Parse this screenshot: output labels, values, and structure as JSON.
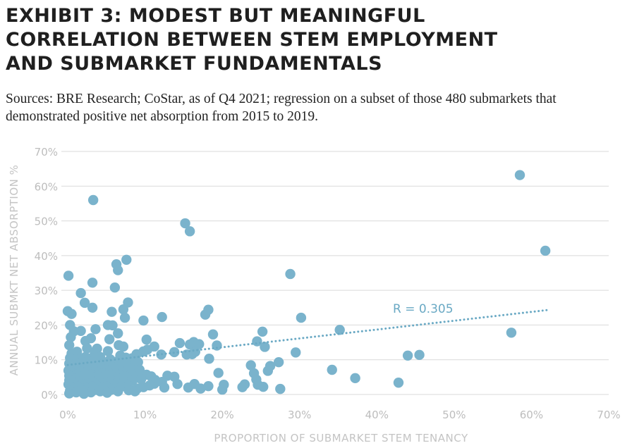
{
  "title_lines": [
    "EXHIBIT 3: MODEST BUT MEANINGFUL",
    "CORRELATION BETWEEN STEM EMPLOYMENT",
    "AND SUBMARKET FUNDAMENTALS"
  ],
  "subtitle": "Sources: BRE Research; CoStar, as of Q4 2021; regression on a subset of those 480 submarkets that demonstrated positive net absorption from 2015 to 2019.",
  "colors": {
    "point": "#7ab3cc",
    "trend": "#6aa9c4",
    "grid": "#d9d9d9",
    "tick": "#bdbdbd"
  },
  "chart_data": {
    "type": "scatter",
    "xlabel": "PROPORTION OF SUBMARKET STEM TENANCY",
    "ylabel": "ANNUAL SUBMKT NET ABSORPTION %",
    "xlim": [
      0,
      70
    ],
    "ylim": [
      0,
      70
    ],
    "x_ticks": [
      "0%",
      "10%",
      "20%",
      "30%",
      "40%",
      "50%",
      "60%",
      "70%"
    ],
    "y_ticks": [
      "0%",
      "10%",
      "20%",
      "30%",
      "40%",
      "50%",
      "60%",
      "70%"
    ],
    "grid": "horizontal",
    "annotation": "R = 0.305",
    "trendline": {
      "x": [
        0,
        62
      ],
      "y": [
        8.5,
        24.3
      ],
      "style": "dotted"
    },
    "points": [
      [
        3.3,
        56
      ],
      [
        15.2,
        49.3
      ],
      [
        15.8,
        47
      ],
      [
        58.5,
        63.2
      ],
      [
        61.8,
        41.4
      ],
      [
        7.6,
        38.8
      ],
      [
        6.3,
        37.5
      ],
      [
        6.5,
        35.8
      ],
      [
        0.1,
        34.2
      ],
      [
        28.8,
        34.7
      ],
      [
        3.2,
        32.2
      ],
      [
        6.1,
        30.8
      ],
      [
        1.7,
        29.2
      ],
      [
        7.8,
        26.5
      ],
      [
        2.2,
        26.4
      ],
      [
        3.2,
        25
      ],
      [
        5.7,
        23.8
      ],
      [
        7.2,
        24.5
      ],
      [
        0,
        24
      ],
      [
        0.5,
        23.2
      ],
      [
        18.2,
        24.4
      ],
      [
        17.8,
        23
      ],
      [
        30.2,
        22.1
      ],
      [
        12.2,
        22.3
      ],
      [
        7.4,
        22.1
      ],
      [
        9.8,
        21.3
      ],
      [
        0.3,
        20
      ],
      [
        5.2,
        20
      ],
      [
        5.8,
        19.9
      ],
      [
        1.7,
        18.3
      ],
      [
        3.6,
        18.8
      ],
      [
        0.8,
        18.2
      ],
      [
        25.2,
        18.1
      ],
      [
        35.2,
        18.6
      ],
      [
        57.4,
        17.8
      ],
      [
        18.8,
        17.3
      ],
      [
        6.5,
        17.6
      ],
      [
        0.4,
        16.5
      ],
      [
        3,
        16.2
      ],
      [
        5.4,
        15.9
      ],
      [
        2.3,
        15.4
      ],
      [
        10.2,
        15.8
      ],
      [
        24.5,
        15.3
      ],
      [
        16.3,
        15.1
      ],
      [
        14.5,
        14.8
      ],
      [
        15.8,
        14.4
      ],
      [
        0.2,
        14.2
      ],
      [
        6.6,
        14.2
      ],
      [
        19.3,
        14.1
      ],
      [
        17,
        14.5
      ],
      [
        25.5,
        13.7
      ],
      [
        11.2,
        13.8
      ],
      [
        7.2,
        13.8
      ],
      [
        2.5,
        13.3
      ],
      [
        3.8,
        13.2
      ],
      [
        10.3,
        12.9
      ],
      [
        9.8,
        12.4
      ],
      [
        1.2,
        12.3
      ],
      [
        29.5,
        12.1
      ],
      [
        5.2,
        12.5
      ],
      [
        16.5,
        12.3
      ],
      [
        13.8,
        12.2
      ],
      [
        0.5,
        11.8
      ],
      [
        8.9,
        11.6
      ],
      [
        15.4,
        11.5
      ],
      [
        16.1,
        11.6
      ],
      [
        0.8,
        11.5
      ],
      [
        3.5,
        11.8
      ],
      [
        6.8,
        11.2
      ],
      [
        44,
        11.2
      ],
      [
        45.5,
        11.4
      ],
      [
        12.1,
        11.5
      ],
      [
        2.3,
        10.8
      ],
      [
        4.2,
        10.8
      ],
      [
        7.5,
        10.6
      ],
      [
        18.3,
        10.3
      ],
      [
        0.3,
        10.5
      ],
      [
        1.5,
        10.2
      ],
      [
        3.1,
        10.4
      ],
      [
        5.5,
        10.1
      ],
      [
        8.3,
        10.4
      ],
      [
        0.7,
        9.8
      ],
      [
        2.6,
        9.6
      ],
      [
        4.5,
        9.5
      ],
      [
        6.2,
        9.4
      ],
      [
        7.9,
        9.4
      ],
      [
        9.1,
        9.3
      ],
      [
        27.3,
        9.3
      ],
      [
        1.2,
        9.1
      ],
      [
        3.3,
        9.2
      ],
      [
        5.1,
        9
      ],
      [
        6.9,
        9
      ],
      [
        8.7,
        8.6
      ],
      [
        0.2,
        8.9
      ],
      [
        2.1,
        8.8
      ],
      [
        4,
        8.7
      ],
      [
        5.8,
        8.3
      ],
      [
        23.7,
        8.4
      ],
      [
        26.2,
        8.2
      ],
      [
        0.9,
        8.4
      ],
      [
        2.8,
        8.3
      ],
      [
        4.7,
        8.2
      ],
      [
        6.5,
        8.1
      ],
      [
        1.5,
        7.9
      ],
      [
        3.6,
        7.8
      ],
      [
        5.3,
        7.9
      ],
      [
        7.3,
        7.8
      ],
      [
        0.4,
        7.7
      ],
      [
        2.3,
        7.5
      ],
      [
        4.3,
        7.6
      ],
      [
        6,
        7.5
      ],
      [
        8.1,
        7.5
      ],
      [
        34.2,
        7.1
      ],
      [
        1.1,
        7.2
      ],
      [
        3,
        7.1
      ],
      [
        4.9,
        7.2
      ],
      [
        6.8,
        7
      ],
      [
        9.3,
        7.1
      ],
      [
        0.1,
        6.9
      ],
      [
        2.6,
        6.8
      ],
      [
        4.1,
        6.7
      ],
      [
        5.7,
        6.8
      ],
      [
        7.6,
        6.7
      ],
      [
        25.9,
        6.8
      ],
      [
        1.7,
        6.5
      ],
      [
        3.6,
        6.4
      ],
      [
        5.3,
        6.3
      ],
      [
        7.1,
        6.4
      ],
      [
        19.5,
        6.2
      ],
      [
        24.1,
        6.1
      ],
      [
        0.6,
        6.1
      ],
      [
        2.4,
        6.2
      ],
      [
        4.5,
        6
      ],
      [
        6.2,
        5.9
      ],
      [
        8.2,
        6
      ],
      [
        10.2,
        5.7
      ],
      [
        1.2,
        5.7
      ],
      [
        3.1,
        5.8
      ],
      [
        4.9,
        5.6
      ],
      [
        6.8,
        5.5
      ],
      [
        9.4,
        5.5
      ],
      [
        12.9,
        5.4
      ],
      [
        0.2,
        5.4
      ],
      [
        2,
        5.3
      ],
      [
        3.9,
        5.3
      ],
      [
        5.8,
        5.2
      ],
      [
        7.6,
        5.1
      ],
      [
        10.8,
        5.2
      ],
      [
        13.8,
        5.1
      ],
      [
        1.4,
        4.9
      ],
      [
        3.3,
        4.9
      ],
      [
        5.2,
        4.8
      ],
      [
        7.1,
        4.8
      ],
      [
        37.2,
        4.7
      ],
      [
        0.8,
        4.6
      ],
      [
        2.6,
        4.5
      ],
      [
        4.5,
        4.4
      ],
      [
        6.4,
        4.4
      ],
      [
        9.5,
        4.4
      ],
      [
        11.3,
        4.2
      ],
      [
        24.4,
        4.3
      ],
      [
        0.2,
        4.1
      ],
      [
        1.9,
        4.1
      ],
      [
        3.8,
        4
      ],
      [
        5.7,
        4
      ],
      [
        8.4,
        4
      ],
      [
        1.3,
        3.7
      ],
      [
        3.2,
        3.6
      ],
      [
        5.1,
        3.6
      ],
      [
        7.2,
        3.5
      ],
      [
        12.2,
        3.6
      ],
      [
        42.8,
        3.4
      ],
      [
        0.6,
        3.3
      ],
      [
        2.5,
        3.2
      ],
      [
        4.4,
        3.1
      ],
      [
        6.3,
        3.2
      ],
      [
        11.2,
        3.1
      ],
      [
        14.2,
        3
      ],
      [
        16.4,
        3
      ],
      [
        22.9,
        2.9
      ],
      [
        24.6,
        2.8
      ],
      [
        0.1,
        2.9
      ],
      [
        1.8,
        2.8
      ],
      [
        3.7,
        2.7
      ],
      [
        5.6,
        2.7
      ],
      [
        7.8,
        2.6
      ],
      [
        10.6,
        2.6
      ],
      [
        18.2,
        2.4
      ],
      [
        20.2,
        2.8
      ],
      [
        1.2,
        2.4
      ],
      [
        3.1,
        2.3
      ],
      [
        5,
        2.2
      ],
      [
        7,
        2.3
      ],
      [
        9.8,
        2.1
      ],
      [
        12.5,
        2
      ],
      [
        15.6,
        2
      ],
      [
        22.6,
        2.1
      ],
      [
        25.3,
        2.2
      ],
      [
        0.5,
        1.9
      ],
      [
        2.4,
        1.8
      ],
      [
        4.3,
        1.8
      ],
      [
        6.2,
        1.7
      ],
      [
        9,
        1.7
      ],
      [
        17.2,
        1.7
      ],
      [
        27.5,
        1.6
      ],
      [
        1.7,
        1.4
      ],
      [
        3.6,
        1.3
      ],
      [
        5.6,
        1.3
      ],
      [
        7.9,
        1.2
      ],
      [
        20,
        1.4
      ],
      [
        0.3,
        1.1
      ],
      [
        2.2,
        1
      ],
      [
        4.2,
        0.9
      ],
      [
        6.5,
        0.9
      ],
      [
        8.7,
        0.9
      ],
      [
        1.1,
        0.6
      ],
      [
        3,
        0.6
      ],
      [
        5.1,
        0.5
      ],
      [
        0.2,
        0.3
      ],
      [
        2.1,
        0.2
      ]
    ]
  }
}
